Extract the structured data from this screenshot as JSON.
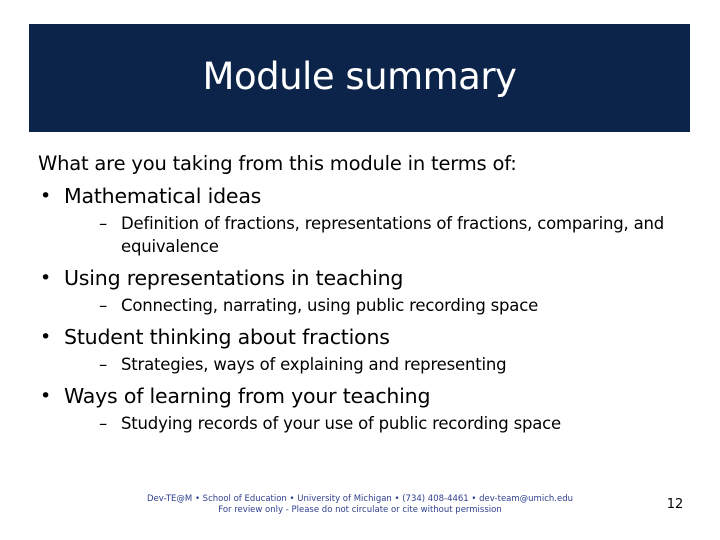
{
  "slide": {
    "title": "Module summary",
    "intro": "What are you taking from this module in terms of:",
    "bullet_symbol": "•",
    "sub_symbol": "–",
    "bullets": [
      {
        "text": "Mathematical ideas",
        "subs": [
          "Definition of fractions, representations of fractions, comparing, and equivalence"
        ]
      },
      {
        "text": "Using representations in teaching",
        "subs": [
          "Connecting, narrating, using public recording space"
        ]
      },
      {
        "text": "Student thinking about fractions",
        "subs": [
          "Strategies, ways of explaining and representing"
        ]
      },
      {
        "text": "Ways of learning from your teaching",
        "subs": [
          "Studying records of your use of public recording space"
        ]
      }
    ],
    "footer_line1": "Dev-TE@M • School of Education • University of Michigan • (734) 408-4461 • dev-team@umich.edu",
    "footer_line2": "For review only - Please do not circulate or cite without permission",
    "page_number": "12"
  },
  "colors": {
    "title_bar": "#0c2449",
    "footer_text": "#2f3f8f"
  }
}
